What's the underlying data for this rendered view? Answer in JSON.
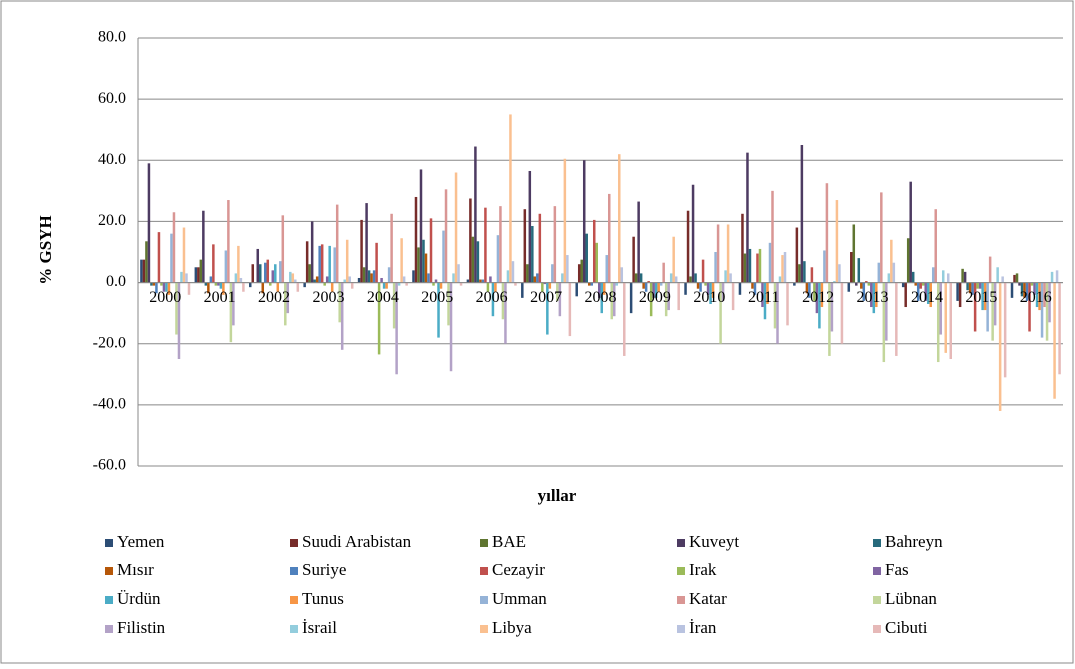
{
  "chart_data": {
    "type": "bar",
    "categories": [
      "2000",
      "2001",
      "2002",
      "2003",
      "2004",
      "2005",
      "2006",
      "2007",
      "2008",
      "2009",
      "2010",
      "2011",
      "2012",
      "2013",
      "2014",
      "2015",
      "2016"
    ],
    "x_label": "yıllar",
    "y_label": "% GSYH",
    "ylim": [
      -60,
      80
    ],
    "yticks": [
      {
        "value": -60,
        "label": "-60.0"
      },
      {
        "value": -40,
        "label": "-40.0"
      },
      {
        "value": -20,
        "label": "-20.0"
      },
      {
        "value": 0,
        "label": "0.0"
      },
      {
        "value": 20,
        "label": "20.0"
      },
      {
        "value": 40,
        "label": "40.0"
      },
      {
        "value": 60,
        "label": "60.0"
      },
      {
        "value": 80,
        "label": "80.0"
      }
    ],
    "grid": true,
    "legend": "bottom",
    "series": [
      {
        "name": "Yemen",
        "color": "#2c4d75",
        "values": [
          7.5,
          5,
          -1.5,
          -1.5,
          1.5,
          4,
          1,
          -5,
          -4.5,
          -10,
          -4,
          -4,
          -1,
          -3,
          -1.5,
          -6,
          -5
        ]
      },
      {
        "name": "Suudi Arabistan",
        "color": "#772c2a",
        "values": [
          7.5,
          5,
          6,
          13.5,
          20.5,
          28,
          27.5,
          24,
          6,
          15,
          23.5,
          22.5,
          18,
          10,
          -8,
          -8,
          2.5
        ]
      },
      {
        "name": "BAE",
        "color": "#5f7530",
        "values": [
          13.5,
          7.5,
          0,
          6,
          5,
          11.5,
          15,
          6,
          7.5,
          3,
          2,
          9.5,
          6,
          19,
          14.5,
          4.5,
          3
        ]
      },
      {
        "name": "Kuveyt",
        "color": "#4d3b62",
        "values": [
          39,
          23.5,
          11,
          20,
          26,
          37,
          44.5,
          36.5,
          40,
          26.5,
          32,
          42.5,
          45,
          -1,
          33,
          3.5,
          -1
        ]
      },
      {
        "name": "Bahreyn",
        "color": "#276a7c",
        "values": [
          -1,
          -1,
          6,
          1,
          4,
          14,
          13.5,
          18.5,
          16,
          3,
          3,
          11,
          7,
          8,
          3.5,
          -2.5,
          -4.5
        ]
      },
      {
        "name": "Mısır",
        "color": "#b65708",
        "values": [
          -1,
          -3.5,
          -3.5,
          2,
          3,
          9.5,
          1,
          2,
          -1,
          -2,
          -2,
          -2,
          -3.5,
          -2,
          -1,
          -3.5,
          -5
        ]
      },
      {
        "name": "Suriye",
        "color": "#4f81bd",
        "values": [
          -3.5,
          2,
          6.5,
          12,
          4,
          3,
          1,
          3,
          -1,
          -3,
          -3,
          -4,
          -5,
          -6,
          -6,
          -4,
          -6
        ]
      },
      {
        "name": "Cezayir",
        "color": "#c0504d",
        "values": [
          16.5,
          12.5,
          7.5,
          12.5,
          13,
          21,
          24.5,
          22.5,
          20.5,
          0.5,
          7.5,
          9.5,
          5,
          0.5,
          -2,
          -16,
          -16
        ]
      },
      {
        "name": "Irak",
        "color": "#9bbb59",
        "values": [
          -1,
          -1,
          -1,
          -1,
          -23.5,
          -1,
          -3,
          -3,
          13,
          -11,
          -1,
          11,
          -6,
          -1,
          -1,
          -2,
          -1
        ]
      },
      {
        "name": "Fas",
        "color": "#8064a2",
        "values": [
          -3,
          -1,
          4,
          2,
          1.5,
          1,
          2,
          -0.5,
          -5,
          -5,
          -4,
          -8,
          -10,
          -8,
          -6,
          -2,
          -4
        ]
      },
      {
        "name": "Ürdün",
        "color": "#4bacc6",
        "values": [
          -3,
          -2,
          6,
          12,
          -2,
          -18,
          -11,
          -17,
          -10,
          -5,
          -7,
          -12,
          -15,
          -10,
          -7,
          -9,
          -8
        ]
      },
      {
        "name": "Tunus",
        "color": "#f79646",
        "values": [
          -4,
          -4,
          -3,
          -3,
          -2,
          -2,
          -3,
          -2,
          -4,
          -3,
          -5,
          -7,
          -8,
          -8,
          -8,
          -9,
          -9
        ]
      },
      {
        "name": "Umman",
        "color": "#95b3d7",
        "values": [
          16,
          10.5,
          7,
          11.5,
          5,
          17,
          15.5,
          6,
          9,
          -1,
          10,
          13,
          10.5,
          6.5,
          5,
          -16,
          -18
        ]
      },
      {
        "name": "Katar",
        "color": "#d99694",
        "values": [
          23,
          27,
          22,
          25.5,
          22.5,
          30.5,
          25,
          25,
          29,
          6.5,
          19,
          30,
          32.5,
          29.5,
          24,
          8.5,
          -8
        ]
      },
      {
        "name": "Lübnan",
        "color": "#c3d69b",
        "values": [
          -17,
          -19.5,
          -14,
          -13,
          -15,
          -14,
          -12,
          -6,
          -12,
          -11,
          -20,
          -15,
          -24,
          -26,
          -26,
          -19,
          -19
        ]
      },
      {
        "name": "Filistin",
        "color": "#b3a2c7",
        "values": [
          -25,
          -14,
          -10,
          -22,
          -30,
          -29,
          -20,
          -11,
          -11,
          -9,
          -6,
          -20,
          -16,
          -19,
          -17,
          -14,
          -13
        ]
      },
      {
        "name": "İsrail",
        "color": "#93cddd",
        "values": [
          3.5,
          3,
          3.5,
          1,
          -1,
          3,
          4,
          3,
          -1,
          3,
          4,
          2,
          0.5,
          3,
          4,
          5,
          3.5
        ]
      },
      {
        "name": "Libya",
        "color": "#fac090",
        "values": [
          18,
          12,
          3,
          14,
          14.5,
          36,
          55,
          40.5,
          42,
          15,
          19,
          9,
          27,
          14,
          -23,
          -42,
          -38
        ]
      },
      {
        "name": "İran",
        "color": "#b9c3e0",
        "values": [
          3,
          1.5,
          1,
          2,
          2,
          6,
          7,
          9,
          5,
          2,
          3,
          10,
          6,
          6.5,
          3,
          2,
          4
        ]
      },
      {
        "name": "Cibuti",
        "color": "#e6b9b8",
        "values": [
          -4,
          -3,
          -3,
          -2,
          -1,
          -1,
          -1,
          -17.5,
          -24,
          -9,
          -9,
          -14,
          -20,
          -24,
          -25,
          -31,
          -30
        ]
      }
    ]
  }
}
